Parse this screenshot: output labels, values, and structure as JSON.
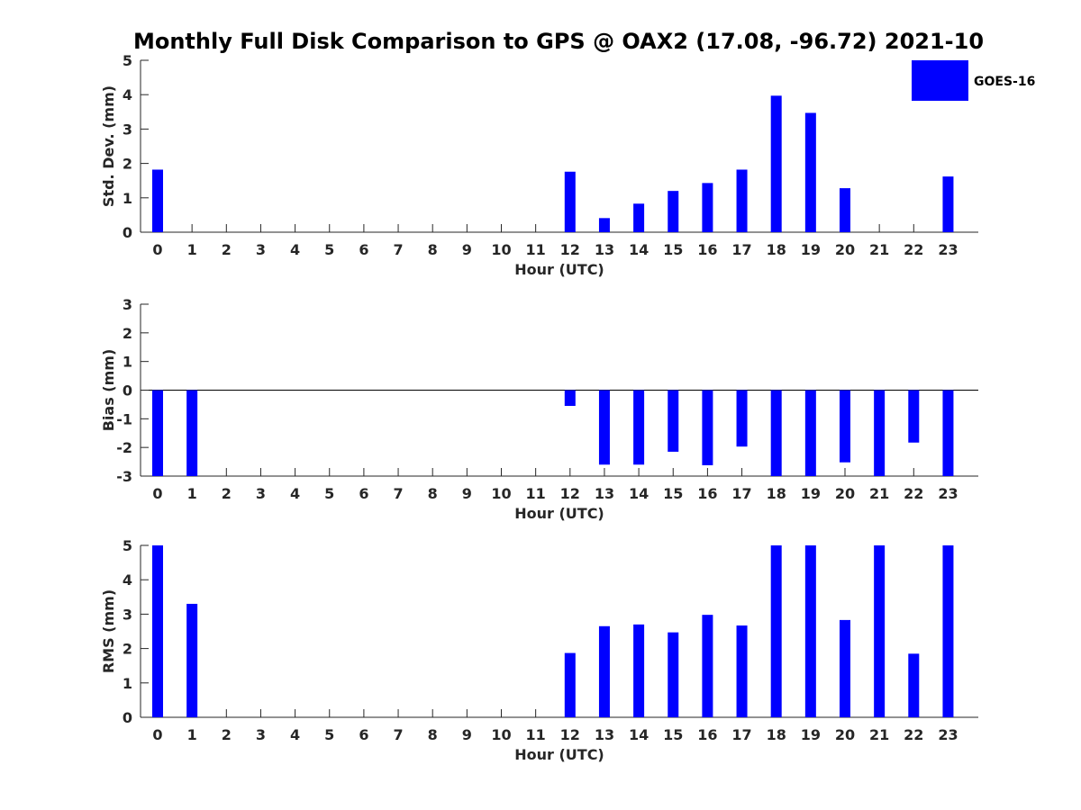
{
  "title": "Monthly Full Disk Comparison to GPS @ OAX2 (17.08, -96.72) 2021-10",
  "legend": {
    "label": "GOES-16",
    "color": "#0000ff",
    "placement": "top-right"
  },
  "chart_data": [
    {
      "type": "bar",
      "ylabel": "Std. Dev. (mm)",
      "xlabel": "Hour (UTC)",
      "categories": [
        "0",
        "1",
        "2",
        "3",
        "4",
        "5",
        "6",
        "7",
        "8",
        "9",
        "10",
        "11",
        "12",
        "13",
        "14",
        "15",
        "16",
        "17",
        "18",
        "19",
        "20",
        "21",
        "22",
        "23"
      ],
      "series": [
        {
          "name": "GOES-16",
          "color": "#0000ff",
          "values": [
            1.82,
            null,
            null,
            null,
            null,
            null,
            null,
            null,
            null,
            null,
            null,
            null,
            1.76,
            0.41,
            0.83,
            1.2,
            1.43,
            1.82,
            3.97,
            3.47,
            1.28,
            null,
            null,
            1.62
          ]
        }
      ],
      "ylim": [
        0,
        5
      ],
      "yticks": [
        "0",
        "1",
        "2",
        "3",
        "4",
        "5"
      ],
      "zero_line": false
    },
    {
      "type": "bar",
      "ylabel": "Bias (mm)",
      "xlabel": "Hour (UTC)",
      "categories": [
        "0",
        "1",
        "2",
        "3",
        "4",
        "5",
        "6",
        "7",
        "8",
        "9",
        "10",
        "11",
        "12",
        "13",
        "14",
        "15",
        "16",
        "17",
        "18",
        "19",
        "20",
        "21",
        "22",
        "23"
      ],
      "series": [
        {
          "name": "GOES-16",
          "color": "#0000ff",
          "values": [
            -3,
            -3,
            null,
            null,
            null,
            null,
            null,
            null,
            null,
            null,
            null,
            null,
            -0.55,
            -2.6,
            -2.6,
            -2.15,
            -2.62,
            -1.97,
            -3,
            -3,
            -2.52,
            -3,
            -1.83,
            -3
          ]
        }
      ],
      "ylim": [
        -3,
        3
      ],
      "yticks": [
        "-3",
        "-2",
        "-1",
        "0",
        "1",
        "2",
        "3"
      ],
      "zero_line": true
    },
    {
      "type": "bar",
      "ylabel": "RMS (mm)",
      "xlabel": "Hour (UTC)",
      "categories": [
        "0",
        "1",
        "2",
        "3",
        "4",
        "5",
        "6",
        "7",
        "8",
        "9",
        "10",
        "11",
        "12",
        "13",
        "14",
        "15",
        "16",
        "17",
        "18",
        "19",
        "20",
        "21",
        "22",
        "23"
      ],
      "series": [
        {
          "name": "GOES-16",
          "color": "#0000ff",
          "values": [
            5,
            3.3,
            null,
            null,
            null,
            null,
            null,
            null,
            null,
            null,
            null,
            null,
            1.87,
            2.65,
            2.7,
            2.47,
            2.98,
            2.67,
            5,
            5,
            2.83,
            5,
            1.85,
            5
          ]
        }
      ],
      "ylim": [
        0,
        5
      ],
      "yticks": [
        "0",
        "1",
        "2",
        "3",
        "4",
        "5"
      ],
      "zero_line": false
    }
  ]
}
